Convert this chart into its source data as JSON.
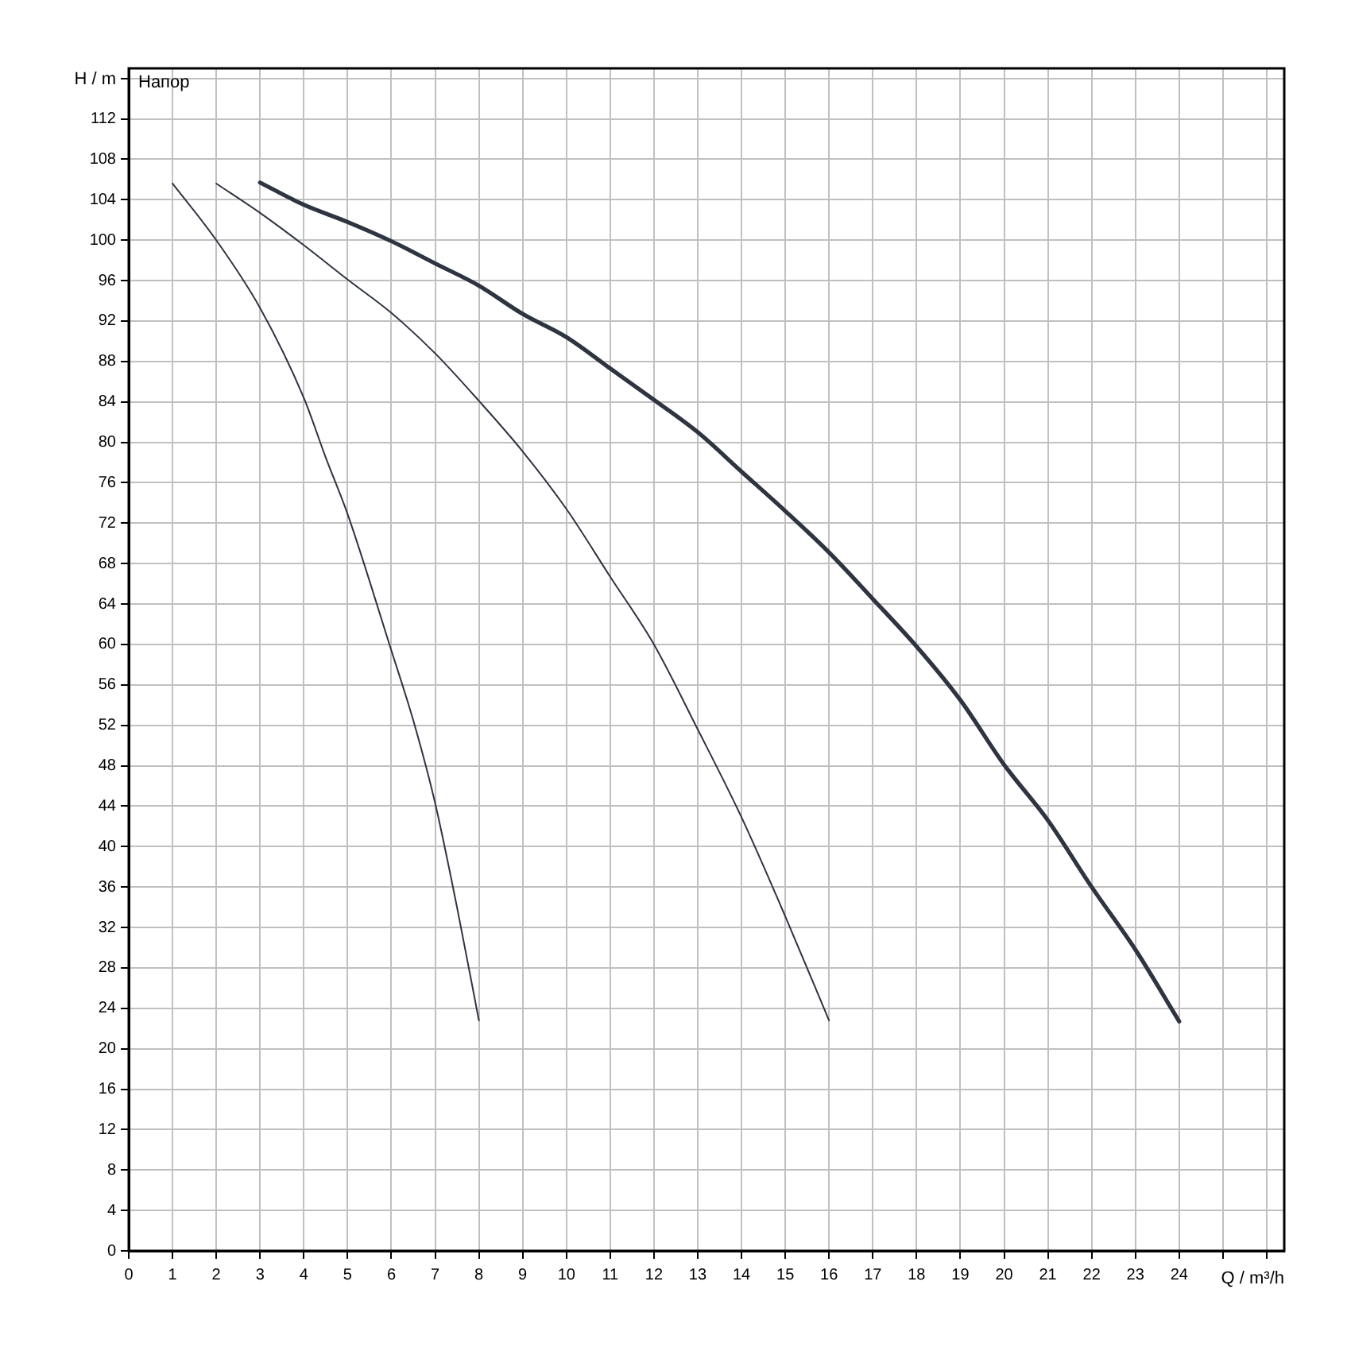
{
  "chart_data": {
    "type": "line",
    "xlabel": "Q / m³/h",
    "ylabel": "H / m",
    "annotations": [
      "Напор"
    ],
    "xlim": [
      0,
      26.4
    ],
    "ylim": [
      0,
      117
    ],
    "xticks": [
      0,
      1,
      2,
      3,
      4,
      5,
      6,
      7,
      8,
      9,
      10,
      11,
      12,
      13,
      14,
      15,
      16,
      17,
      18,
      19,
      20,
      21,
      22,
      23,
      24,
      {
        "value": 25,
        "label": null
      },
      {
        "value": 26,
        "label": null
      }
    ],
    "yticks": [
      0,
      4,
      8,
      12,
      16,
      20,
      24,
      28,
      32,
      36,
      40,
      44,
      48,
      52,
      56,
      60,
      64,
      68,
      72,
      76,
      80,
      84,
      88,
      92,
      96,
      100,
      104,
      108,
      112,
      {
        "value": 116,
        "label": null
      }
    ],
    "grid": true,
    "marker": "none",
    "line_style": "solid",
    "series": [
      {
        "color": "#2e3440",
        "x": [
          1,
          2,
          3,
          4,
          4.5,
          5,
          6,
          6.5,
          7,
          7.5,
          8
        ],
        "values": [
          105.6,
          100.0,
          93.3,
          84.4,
          78.5,
          72.9,
          59.4,
          52.5,
          44.3,
          34,
          22.8
        ]
      },
      {
        "color": "#2e3440",
        "x": [
          2,
          3,
          4,
          5,
          6,
          7,
          8,
          9,
          10,
          11,
          12,
          13,
          14,
          15,
          16
        ],
        "values": [
          105.6,
          102.7,
          99.5,
          96.1,
          92.8,
          88.8,
          84.1,
          79.1,
          73.4,
          66.7,
          60.0,
          51.6,
          42.9,
          33.1,
          22.8
        ]
      },
      {
        "color": "#2e3440",
        "x": [
          3,
          4,
          5,
          6,
          7,
          8,
          9,
          10,
          11,
          12,
          13,
          14,
          15,
          16,
          17,
          18,
          19,
          20,
          21,
          22,
          23,
          24
        ],
        "values": [
          105.7,
          103.5,
          101.8,
          99.9,
          97.7,
          95.5,
          92.7,
          90.4,
          87.3,
          84.2,
          81.0,
          77.1,
          73.2,
          69.1,
          64.5,
          59.8,
          54.5,
          48.1,
          42.6,
          36.0,
          29.8,
          22.7
        ]
      }
    ]
  }
}
